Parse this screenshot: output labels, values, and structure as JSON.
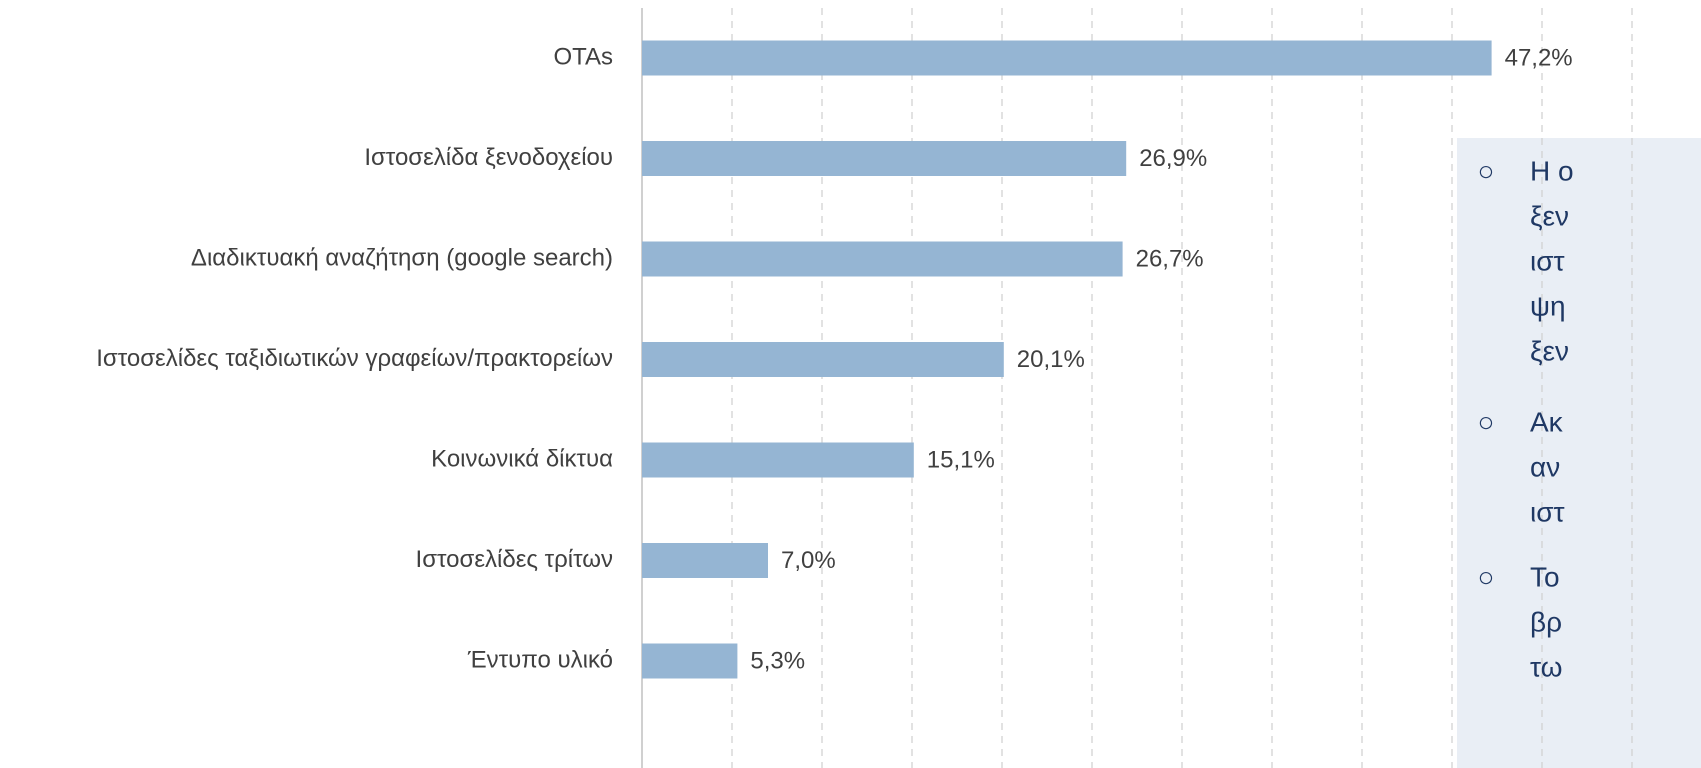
{
  "chart_data": {
    "type": "bar",
    "orientation": "horizontal",
    "categories": [
      "OTAs",
      "Ιστοσελίδα ξενοδοχείου",
      "Διαδικτυακή αναζήτηση (google search)",
      "Ιστοσελίδες ταξιδιωτικών γραφείων/πρακτορείων",
      "Κοινωνικά δίκτυα",
      "Ιστοσελίδες τρίτων",
      "Έντυπο υλικό"
    ],
    "values": [
      47.2,
      26.9,
      26.7,
      20.1,
      15.1,
      7.0,
      5.3
    ],
    "value_labels": [
      "47,2%",
      "26,9%",
      "26,7%",
      "20,1%",
      "15,1%",
      "7,0%",
      "5,3%"
    ],
    "color": "#95b5d3",
    "xlim": [
      0,
      58.8
    ],
    "xticks": [
      0,
      5,
      10,
      15,
      20,
      25,
      30,
      35,
      40,
      45,
      50,
      55
    ],
    "grid": true
  },
  "annotations": [
    [
      "Η ο",
      "ξεν",
      "ιστ",
      "ψη",
      "ξεν"
    ],
    [
      "Ακ",
      "αν",
      "ιστ"
    ],
    [
      "Το",
      "βρ",
      "τω"
    ]
  ]
}
